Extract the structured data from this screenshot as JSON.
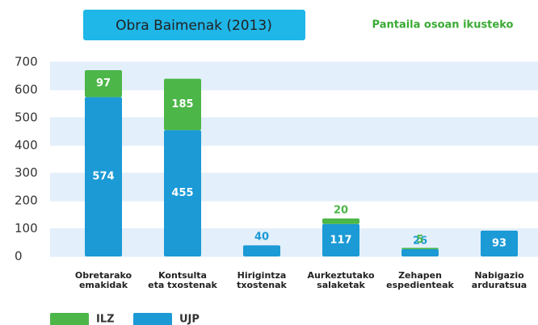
{
  "chart_data": {
    "type": "stacked-bar",
    "title": "Obra Baimenak (2013)",
    "link": "Pantaila osoan ikusteko",
    "categories": [
      "Obretarako\nemakidak",
      "Kontsulta\neta txostenak",
      "Hirigintza\ntxostenak",
      "Aurkeztutako\nsalaketak",
      "Zehapen\nespedienteak",
      "Nabigazio\narduratsua"
    ],
    "series": [
      {
        "name": "ILZ",
        "color": "#4cb648",
        "values": [
          97,
          185,
          null,
          20,
          5,
          null
        ]
      },
      {
        "name": "UJP",
        "color": "#1b9ad6",
        "values": [
          574,
          455,
          40,
          117,
          26,
          93
        ]
      }
    ],
    "ylim": [
      0,
      700
    ],
    "yticks": [
      0,
      100,
      200,
      300,
      400,
      500,
      600,
      700
    ],
    "grid": true
  }
}
